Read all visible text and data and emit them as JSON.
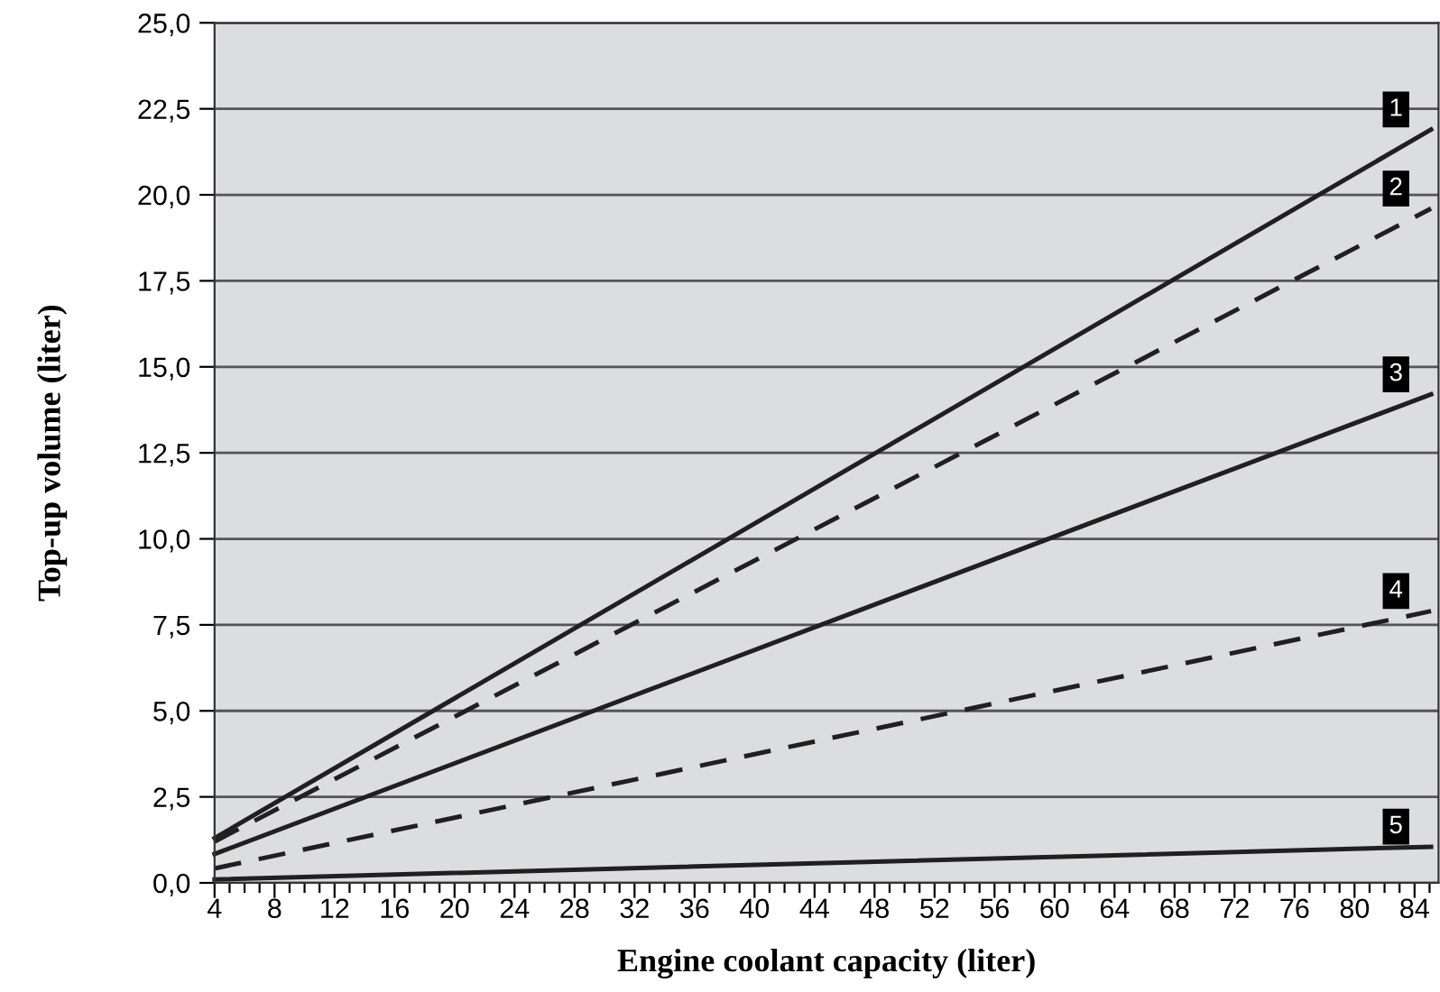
{
  "chart_data": {
    "type": "line",
    "xlabel": "Engine coolant capacity (liter)",
    "ylabel": "Top-up volume (liter)",
    "x": [
      4,
      85.1
    ],
    "series": [
      {
        "name": "1",
        "color": "#231f20",
        "values": [
          1.3,
          21.9
        ],
        "line_style": "solid"
      },
      {
        "name": "2",
        "color": "#231f20",
        "values": [
          1.2,
          19.6
        ],
        "line_style": "dashed"
      },
      {
        "name": "3",
        "color": "#231f20",
        "values": [
          0.84,
          14.2
        ],
        "line_style": "solid"
      },
      {
        "name": "4",
        "color": "#231f20",
        "values": [
          0.42,
          7.9
        ],
        "line_style": "dashed"
      },
      {
        "name": "5",
        "color": "#231f20",
        "values": [
          0.1,
          1.05
        ],
        "line_style": "solid"
      }
    ],
    "xlim": [
      4,
      85.6
    ],
    "ylim": [
      0,
      25
    ],
    "xticks": [
      4,
      {
        "value": 5,
        "label": null
      },
      {
        "value": 6,
        "label": null
      },
      {
        "value": 7,
        "label": null
      },
      8,
      {
        "value": 9,
        "label": null
      },
      {
        "value": 10,
        "label": null
      },
      {
        "value": 11,
        "label": null
      },
      12,
      {
        "value": 13,
        "label": null
      },
      {
        "value": 14,
        "label": null
      },
      {
        "value": 15,
        "label": null
      },
      16,
      {
        "value": 17,
        "label": null
      },
      {
        "value": 18,
        "label": null
      },
      {
        "value": 19,
        "label": null
      },
      20,
      {
        "value": 21,
        "label": null
      },
      {
        "value": 22,
        "label": null
      },
      {
        "value": 23,
        "label": null
      },
      24,
      {
        "value": 25,
        "label": null
      },
      {
        "value": 26,
        "label": null
      },
      {
        "value": 27,
        "label": null
      },
      28,
      {
        "value": 29,
        "label": null
      },
      {
        "value": 30,
        "label": null
      },
      {
        "value": 31,
        "label": null
      },
      32,
      {
        "value": 33,
        "label": null
      },
      {
        "value": 34,
        "label": null
      },
      {
        "value": 35,
        "label": null
      },
      36,
      {
        "value": 37,
        "label": null
      },
      {
        "value": 38,
        "label": null
      },
      {
        "value": 39,
        "label": null
      },
      40,
      {
        "value": 41,
        "label": null
      },
      {
        "value": 42,
        "label": null
      },
      {
        "value": 43,
        "label": null
      },
      44,
      {
        "value": 45,
        "label": null
      },
      {
        "value": 46,
        "label": null
      },
      {
        "value": 47,
        "label": null
      },
      48,
      {
        "value": 49,
        "label": null
      },
      {
        "value": 50,
        "label": null
      },
      {
        "value": 51,
        "label": null
      },
      52,
      {
        "value": 53,
        "label": null
      },
      {
        "value": 54,
        "label": null
      },
      {
        "value": 55,
        "label": null
      },
      56,
      {
        "value": 57,
        "label": null
      },
      {
        "value": 58,
        "label": null
      },
      {
        "value": 59,
        "label": null
      },
      60,
      {
        "value": 61,
        "label": null
      },
      {
        "value": 62,
        "label": null
      },
      {
        "value": 63,
        "label": null
      },
      64,
      {
        "value": 65,
        "label": null
      },
      {
        "value": 66,
        "label": null
      },
      {
        "value": 67,
        "label": null
      },
      68,
      {
        "value": 69,
        "label": null
      },
      {
        "value": 70,
        "label": null
      },
      {
        "value": 71,
        "label": null
      },
      72,
      {
        "value": 73,
        "label": null
      },
      {
        "value": 74,
        "label": null
      },
      {
        "value": 75,
        "label": null
      },
      76,
      {
        "value": 77,
        "label": null
      },
      {
        "value": 78,
        "label": null
      },
      {
        "value": 79,
        "label": null
      },
      80,
      {
        "value": 81,
        "label": null
      },
      {
        "value": 82,
        "label": null
      },
      {
        "value": 83,
        "label": null
      },
      84,
      {
        "value": 85,
        "label": null
      }
    ],
    "yticks": [
      {
        "value": 0,
        "label": "0,0"
      },
      {
        "value": 2.5,
        "label": "2,5"
      },
      {
        "value": 5,
        "label": "5,0"
      },
      {
        "value": 7.5,
        "label": "7,5"
      },
      {
        "value": 10,
        "label": "10,0"
      },
      {
        "value": 12.5,
        "label": "12,5"
      },
      {
        "value": 15,
        "label": "15,0"
      },
      {
        "value": 17.5,
        "label": "17,5"
      },
      {
        "value": 20,
        "label": "20,0"
      },
      {
        "value": 22.5,
        "label": "22,5"
      },
      {
        "value": 25,
        "label": "25,0"
      }
    ],
    "grid": "y",
    "legend": false,
    "marker": "none"
  }
}
